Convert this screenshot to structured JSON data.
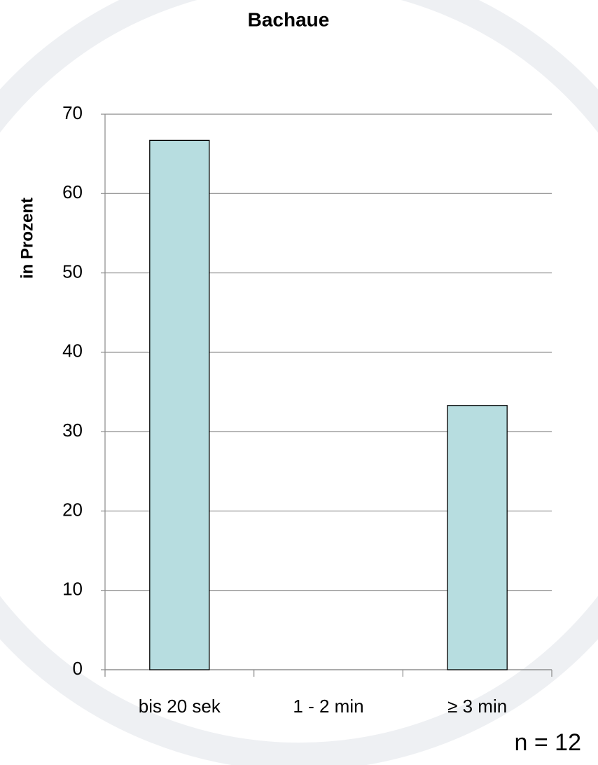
{
  "chart_data": {
    "type": "bar",
    "title": "Bachaue",
    "y_label": "in Prozent",
    "categories": [
      "bis 20 sek",
      "1 - 2 min",
      "≥ 3 min"
    ],
    "values": [
      66.7,
      0,
      33.3
    ],
    "color": "#b7dde0",
    "ylim": [
      0,
      70
    ],
    "yticks": [
      0,
      10,
      20,
      30,
      40,
      50,
      60,
      70
    ],
    "grid": true,
    "annotation": "n = 12"
  }
}
